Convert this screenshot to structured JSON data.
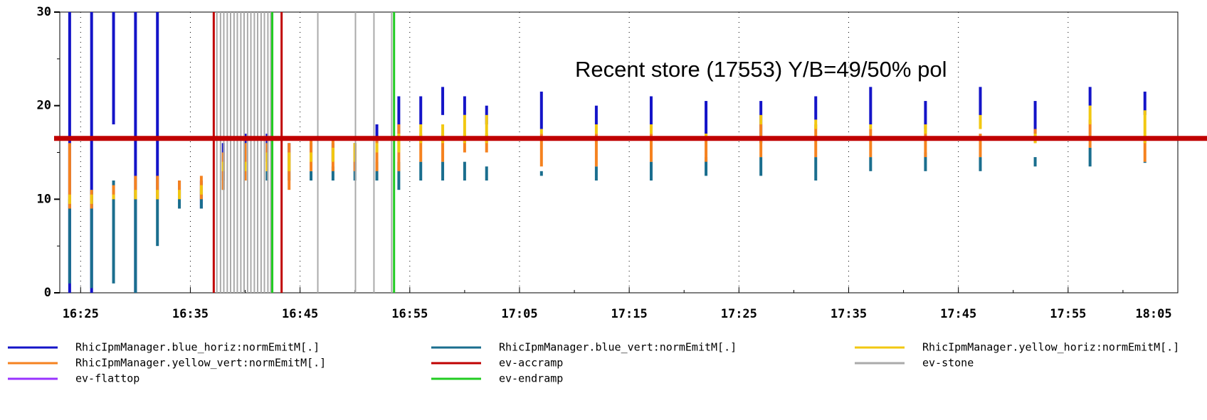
{
  "chart_data": {
    "type": "floating_bar",
    "annotation": "Recent store (17553) Y/B=49/50% pol",
    "xlim": [
      "16:23:06",
      "18:05"
    ],
    "xticks": [
      "16:25",
      "16:35",
      "16:45",
      "16:55",
      "17:05",
      "17:15",
      "17:25",
      "17:35",
      "17:45",
      "17:55",
      "18:05"
    ],
    "minor_xticks": [
      "16:30",
      "16:40",
      "16:50",
      "17:00",
      "17:10",
      "17:20",
      "17:30",
      "17:40",
      "17:50",
      "18:00"
    ],
    "ylim": [
      0,
      30
    ],
    "yticks": [
      0,
      10,
      20,
      30
    ],
    "minor_yticks": [
      5,
      15,
      25
    ],
    "grid": true,
    "reference_line": {
      "value": 16.5,
      "color": "#c00000"
    },
    "x": [
      "16:24",
      "16:26",
      "16:28",
      "16:30",
      "16:32",
      "16:34",
      "16:36",
      "16:38",
      "16:40",
      "16:42",
      "16:44",
      "16:46",
      "16:48",
      "16:50",
      "16:52",
      "16:54",
      "16:56",
      "16:58",
      "17:00",
      "17:02",
      "17:07",
      "17:12",
      "17:17",
      "17:22",
      "17:27",
      "17:32",
      "17:37",
      "17:42",
      "17:47",
      "17:52",
      "17:57",
      "18:02"
    ],
    "series": [
      {
        "name": "RhicIpmManager.blue_horiz:normEmitM[.]",
        "color": "#1414c8",
        "values": [
          [
            0,
            30
          ],
          [
            0,
            30
          ],
          [
            18,
            30
          ],
          [
            0,
            30
          ],
          [
            10,
            30
          ],
          [
            10,
            12
          ],
          [
            9,
            12
          ],
          [
            12,
            16
          ],
          [
            13,
            17
          ],
          [
            14,
            17
          ],
          [
            14,
            16
          ],
          [
            14,
            16
          ],
          [
            14,
            16
          ],
          [
            14,
            16
          ],
          [
            16,
            18
          ],
          [
            17,
            21
          ],
          [
            18,
            21
          ],
          [
            19,
            22
          ],
          [
            19,
            21
          ],
          [
            18,
            20
          ],
          [
            17.5,
            21.5
          ],
          [
            18,
            20
          ],
          [
            17.5,
            21
          ],
          [
            17,
            20.5
          ],
          [
            16,
            20.5
          ],
          [
            18.5,
            21
          ],
          [
            18,
            22
          ],
          [
            17.5,
            20.5
          ],
          [
            18,
            22
          ],
          [
            17,
            20.5
          ],
          [
            20,
            22
          ],
          [
            19,
            21.5
          ]
        ]
      },
      {
        "name": "RhicIpmManager.blue_vert:normEmitM[.]",
        "color": "#1a6e8e",
        "values": [
          [
            1,
            10
          ],
          [
            0.5,
            11
          ],
          [
            1,
            12
          ],
          [
            0,
            11
          ],
          [
            5,
            10
          ],
          [
            9,
            11
          ],
          [
            9,
            11
          ],
          [
            11,
            13
          ],
          [
            12,
            13
          ],
          [
            12,
            13
          ],
          [
            12,
            14
          ],
          [
            12,
            13
          ],
          [
            12,
            13.5
          ],
          [
            12,
            14
          ],
          [
            12,
            14
          ],
          [
            11,
            14
          ],
          [
            12,
            14
          ],
          [
            12,
            14
          ],
          [
            12,
            14
          ],
          [
            12,
            13.5
          ],
          [
            12.5,
            13
          ],
          [
            12,
            13.5
          ],
          [
            12,
            14
          ],
          [
            12.5,
            14.5
          ],
          [
            12.5,
            14.5
          ],
          [
            12,
            14.5
          ],
          [
            13,
            14.5
          ],
          [
            13,
            15
          ],
          [
            13,
            14.5
          ],
          [
            13.5,
            14.5
          ],
          [
            13.5,
            15.5
          ],
          [
            14,
            14
          ]
        ]
      },
      {
        "name": "RhicIpmManager.yellow_horiz:normEmitM[.]",
        "color": "#f2c811",
        "values": [
          [
            9.5,
            10.5
          ],
          [
            9.5,
            10.5
          ],
          [
            10,
            10.5
          ],
          [
            10,
            11
          ],
          [
            10,
            11
          ],
          [
            10,
            11
          ],
          [
            10.5,
            11.5
          ],
          [
            13,
            14
          ],
          [
            13,
            14
          ],
          [
            13,
            15
          ],
          [
            13,
            15
          ],
          [
            14,
            15
          ],
          [
            14,
            15.5
          ],
          [
            14,
            16
          ],
          [
            15,
            16
          ],
          [
            15,
            17
          ],
          [
            16,
            18
          ],
          [
            16,
            18
          ],
          [
            16,
            19
          ],
          [
            16,
            19
          ],
          [
            17,
            17.5
          ],
          [
            17,
            18
          ],
          [
            17,
            18
          ],
          [
            16.5,
            17
          ],
          [
            18,
            19
          ],
          [
            17.5,
            18.5
          ],
          [
            17.5,
            18
          ],
          [
            17,
            18
          ],
          [
            17.5,
            19
          ],
          [
            16,
            17
          ],
          [
            18,
            20
          ],
          [
            16,
            19.5
          ]
        ]
      },
      {
        "name": "RhicIpmManager.yellow_vert:normEmitM[.]",
        "color": "#f5821f",
        "values": [
          [
            9,
            16
          ],
          [
            9,
            11
          ],
          [
            10,
            11.5
          ],
          [
            10,
            12.5
          ],
          [
            10,
            12.5
          ],
          [
            10.5,
            12
          ],
          [
            10,
            12.5
          ],
          [
            11,
            15
          ],
          [
            12,
            16
          ],
          [
            13,
            16
          ],
          [
            11,
            16
          ],
          [
            13,
            16.5
          ],
          [
            13,
            16.5
          ],
          [
            13,
            16
          ],
          [
            13,
            16.5
          ],
          [
            13,
            18
          ],
          [
            14,
            17
          ],
          [
            14,
            17
          ],
          [
            15,
            17
          ],
          [
            15,
            17
          ],
          [
            13.5,
            17
          ],
          [
            13.5,
            17
          ],
          [
            14,
            17
          ],
          [
            14,
            17
          ],
          [
            14.5,
            18
          ],
          [
            14.5,
            18
          ],
          [
            14.5,
            17.5
          ],
          [
            14.5,
            18
          ],
          [
            14.5,
            17
          ],
          [
            16,
            17.5
          ],
          [
            15.5,
            18.5
          ],
          [
            14,
            16.5
          ]
        ]
      }
    ],
    "events": [
      {
        "name": "ev-accramp",
        "color": "#c00000",
        "x": [
          "16:37:08",
          "16:43:19"
        ]
      },
      {
        "name": "ev-stone",
        "color": "#aaaaaa",
        "x": [
          "16:37:25",
          "16:37:45",
          "16:38:03",
          "16:38:22",
          "16:38:40",
          "16:38:59",
          "16:39:17",
          "16:39:36",
          "16:39:54",
          "16:40:13",
          "16:40:31",
          "16:40:50",
          "16:41:08",
          "16:41:27",
          "16:41:45",
          "16:42:04",
          "16:42:20",
          "16:46:37",
          "16:50:03",
          "16:51:44",
          "16:53:21"
        ]
      },
      {
        "name": "ev-flattop",
        "color": "#9933ff",
        "x": []
      },
      {
        "name": "ev-endramp",
        "color": "#22cc22",
        "x": [
          "16:42:28",
          "16:53:34"
        ]
      }
    ]
  }
}
